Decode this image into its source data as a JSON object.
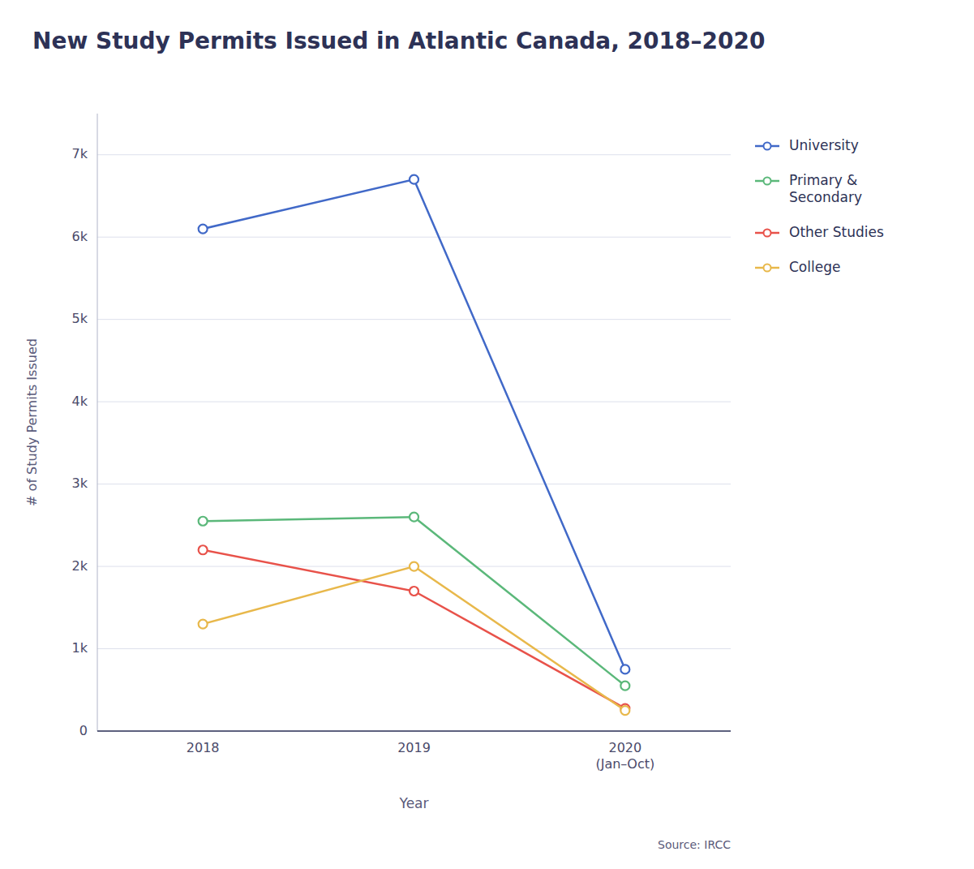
{
  "chart_data": {
    "type": "line",
    "title": "New Study Permits Issued in Atlantic Canada, 2018–2020",
    "x_label": "Year",
    "y_label": "# of Study Permits Issued",
    "source": "Source: IRCC",
    "categories": [
      "2018",
      "2019",
      "2020\n(Jan–Oct)"
    ],
    "series": [
      {
        "name": "University",
        "color": "#4169c8",
        "marker": "circle",
        "values": [
          6100,
          6700,
          750
        ]
      },
      {
        "name": "Primary &\nSecondary",
        "color": "#5bb87a",
        "marker": "circle",
        "values": [
          2550,
          2600,
          550
        ]
      },
      {
        "name": "Other Studies",
        "color": "#e8524a",
        "marker": "circle",
        "values": [
          2200,
          1700,
          275
        ]
      },
      {
        "name": "College",
        "color": "#e8b84b",
        "marker": "circle",
        "values": [
          1300,
          2000,
          250
        ]
      }
    ],
    "ylim": [
      0,
      7500
    ],
    "yticks": [
      0,
      {
        "value": 1000,
        "label": "1k"
      },
      {
        "value": 2000,
        "label": "2k"
      },
      {
        "value": 3000,
        "label": "3k"
      },
      {
        "value": 4000,
        "label": "4k"
      },
      {
        "value": 5000,
        "label": "5k"
      },
      {
        "value": 6000,
        "label": "6k"
      },
      {
        "value": 7000,
        "label": "7k"
      }
    ],
    "grid": true,
    "legend": "right"
  }
}
